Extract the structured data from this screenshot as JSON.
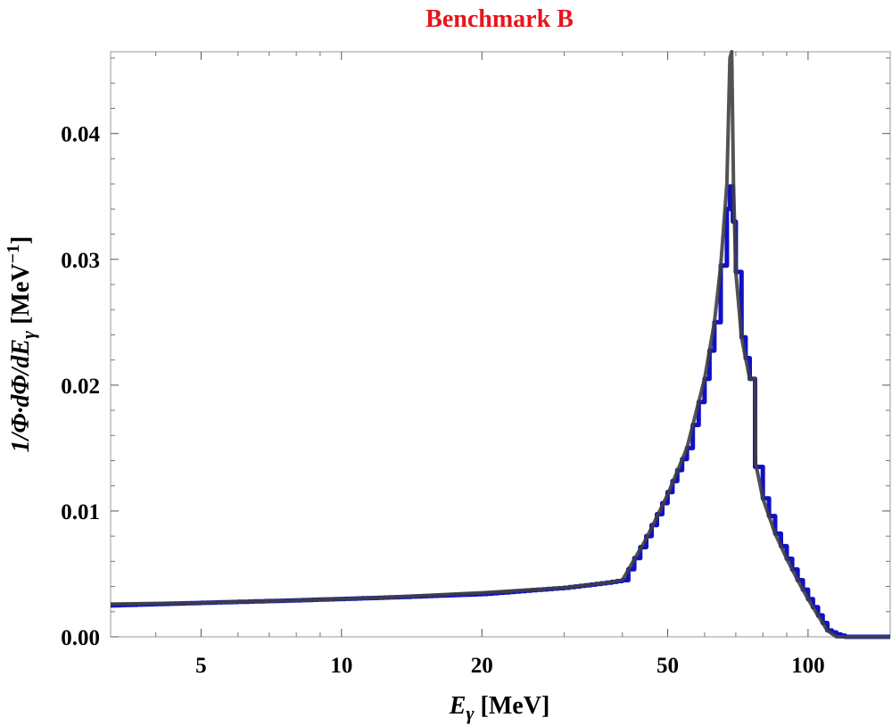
{
  "chart_data": {
    "type": "line",
    "title": "Benchmark B",
    "xlabel": "Eγ [MeV]",
    "ylabel": "1/Φ·dΦ/dEγ [MeV⁻¹]",
    "xscale": "log",
    "xlim": [
      3.2,
      150
    ],
    "ylim": [
      0,
      0.0465
    ],
    "x_ticks": [
      5,
      10,
      20,
      50,
      100
    ],
    "x_tick_labels": [
      "5",
      "10",
      "20",
      "50",
      "100"
    ],
    "y_ticks": [
      0,
      0.01,
      0.02,
      0.03,
      0.04
    ],
    "y_tick_labels": [
      "0.00",
      "0.01",
      "0.02",
      "0.03",
      "0.04"
    ],
    "grid": false,
    "series": [
      {
        "style": "step",
        "color": "#1010c8",
        "x": [
          3.2,
          5,
          8,
          12,
          20,
          30,
          37,
          40,
          45,
          50,
          55,
          60,
          63,
          65,
          67,
          68,
          69,
          70,
          72,
          75,
          77,
          80,
          85,
          90,
          95,
          100,
          105,
          110,
          115,
          120,
          150
        ],
        "y": [
          0.0025,
          0.0027,
          0.0029,
          0.0031,
          0.0034,
          0.0039,
          0.0043,
          0.0045,
          0.008,
          0.0115,
          0.015,
          0.0205,
          0.025,
          0.0295,
          0.034,
          0.0358,
          0.033,
          0.029,
          0.0238,
          0.0205,
          0.0135,
          0.011,
          0.0082,
          0.0062,
          0.0045,
          0.003,
          0.0017,
          0.0005,
          0.0002,
          0.0,
          0.0
        ]
      },
      {
        "style": "line",
        "color": "#404040",
        "x": [
          3.2,
          5,
          8,
          12,
          20,
          30,
          37,
          40,
          45,
          50,
          55,
          60,
          63,
          65,
          67,
          68,
          68.6,
          69.2,
          70,
          72,
          75,
          77,
          77.2,
          80,
          85,
          90,
          95,
          100,
          105,
          110,
          115,
          120,
          150
        ],
        "y": [
          0.0026,
          0.0027,
          0.0029,
          0.0031,
          0.0035,
          0.0039,
          0.0043,
          0.0045,
          0.0078,
          0.0113,
          0.015,
          0.0205,
          0.025,
          0.0295,
          0.036,
          0.046,
          0.0465,
          0.036,
          0.029,
          0.0238,
          0.0205,
          0.0205,
          0.0138,
          0.011,
          0.0082,
          0.0062,
          0.0045,
          0.003,
          0.0017,
          0.0005,
          0.0,
          0.0,
          0.0
        ]
      }
    ]
  }
}
